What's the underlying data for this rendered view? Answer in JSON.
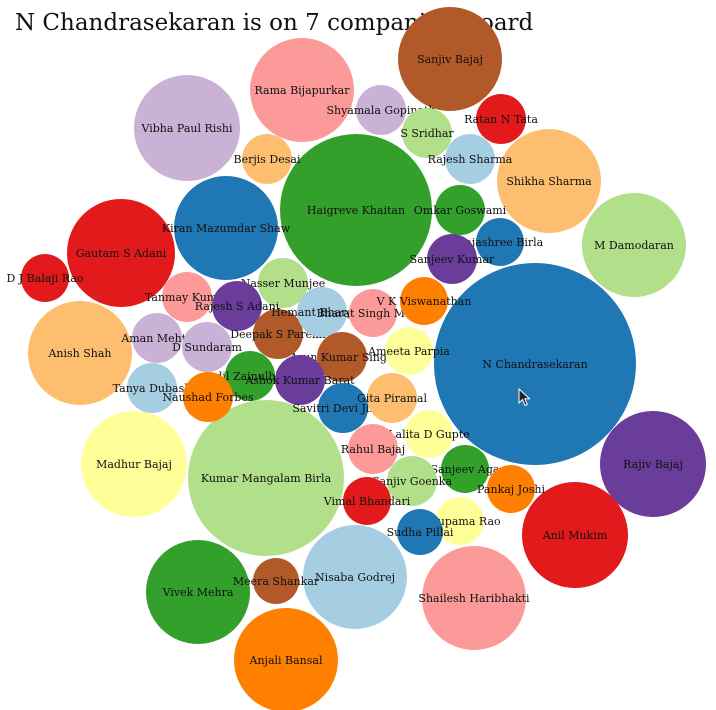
{
  "chart_data": {
    "type": "bubble",
    "title": "N Chandrasekaran is on 7 companies' board",
    "palette": [
      "#1f78b4",
      "#33a02c",
      "#e31a1c",
      "#ff7f00",
      "#6a3d9a",
      "#b15928",
      "#a6cee3",
      "#b2df8a",
      "#fb9a99",
      "#fdbf6f",
      "#cab2d6",
      "#ffff99"
    ],
    "nodes": [
      {
        "name": "N Chandrasekaran",
        "value": 7,
        "color": "#1f78b4"
      },
      {
        "name": "Kumar Mangalam Birla",
        "value": 4.1,
        "color": "#b2df8a"
      },
      {
        "name": "Haigreve Khaitan",
        "value": 3.9,
        "color": "#33a02c"
      },
      {
        "name": "Rama Bijapurkar",
        "value": 1.5,
        "color": "#fb9a99"
      },
      {
        "name": "Vibha Paul Rishi",
        "value": 1.5,
        "color": "#cab2d6"
      },
      {
        "name": "Gautam S Adani",
        "value": 1.55,
        "color": "#e31a1c"
      },
      {
        "name": "Kiran Mazumdar Shaw",
        "value": 1.45,
        "color": "#1f78b4"
      },
      {
        "name": "Shikha Sharma",
        "value": 1.45,
        "color": "#fdbf6f"
      },
      {
        "name": "M Damodaran",
        "value": 1.4,
        "color": "#b2df8a"
      },
      {
        "name": "Rajiv Bajaj",
        "value": 1.45,
        "color": "#6a3d9a"
      },
      {
        "name": "Anil Mukim",
        "value": 1.45,
        "color": "#e31a1c"
      },
      {
        "name": "Madhur Bajaj",
        "value": 1.45,
        "color": "#ffff99"
      },
      {
        "name": "Vivek Mehra",
        "value": 1.4,
        "color": "#33a02c"
      },
      {
        "name": "Anjali Bansal",
        "value": 1.45,
        "color": "#ff7f00"
      },
      {
        "name": "Nisaba Godrej",
        "value": 1.45,
        "color": "#a6cee3"
      },
      {
        "name": "Shailesh Haribhakti",
        "value": 1.07,
        "color": "#fb9a99"
      },
      {
        "name": "Anish Shah",
        "value": 1.41,
        "color": "#fdbf6f"
      },
      {
        "name": "Sanjiv Bajaj",
        "value": 1.38,
        "color": "#b15928"
      },
      {
        "name": "Ratan N Tata",
        "value": 0.3,
        "color": "#e31a1c"
      },
      {
        "name": "Shyamala Gopinath",
        "value": 0.3,
        "color": "#cab2d6"
      },
      {
        "name": "S Sridhar",
        "value": 0.29,
        "color": "#b2df8a"
      },
      {
        "name": "Rajesh Sharma",
        "value": 0.29,
        "color": "#a6cee3"
      },
      {
        "name": "Berjis Desai",
        "value": 0.29,
        "color": "#fdbf6f"
      },
      {
        "name": "Omkar Goswami",
        "value": 0.29,
        "color": "#33a02c"
      },
      {
        "name": "Rajashree Birla",
        "value": 0.28,
        "color": "#1f78b4"
      },
      {
        "name": "Sanjeev Kumar",
        "value": 0.29,
        "color": "#6a3d9a"
      },
      {
        "name": "Nasser Munjee",
        "value": 0.29,
        "color": "#b2df8a"
      },
      {
        "name": "Tanmay Kumar",
        "value": 0.29,
        "color": "#fb9a99"
      },
      {
        "name": "Rajesh S Adani",
        "value": 0.29,
        "color": "#6a3d9a"
      },
      {
        "name": "D J Balaji Rao",
        "value": 0.27,
        "color": "#e31a1c"
      },
      {
        "name": "Aman Mehta",
        "value": 0.29,
        "color": "#cab2d6"
      },
      {
        "name": "D Sundaram",
        "value": 0.29,
        "color": "#cab2d6"
      },
      {
        "name": "Deepak S Parekh",
        "value": 0.29,
        "color": "#b15928"
      },
      {
        "name": "Hemant Bhargava",
        "value": 0.29,
        "color": "#a6cee3"
      },
      {
        "name": "Bharat Singh Mehta",
        "value": 0.27,
        "color": "#fb9a99"
      },
      {
        "name": "V K Viswanathan",
        "value": 0.28,
        "color": "#ff7f00"
      },
      {
        "name": "Arun Kumar Singh",
        "value": 0.29,
        "color": "#b15928"
      },
      {
        "name": "Ameeta Parpia",
        "value": 0.27,
        "color": "#ffff99"
      },
      {
        "name": "Tanya Dubash",
        "value": 0.29,
        "color": "#a6cee3"
      },
      {
        "name": "Adil Zainulbhai",
        "value": 0.29,
        "color": "#33a02c"
      },
      {
        "name": "Ashok Kumar Barat",
        "value": 0.29,
        "color": "#6a3d9a"
      },
      {
        "name": "Naushad Forbes",
        "value": 0.29,
        "color": "#ff7f00"
      },
      {
        "name": "Savitri Devi Jindal",
        "value": 0.29,
        "color": "#1f78b4"
      },
      {
        "name": "Gita Piramal",
        "value": 0.29,
        "color": "#fdbf6f"
      },
      {
        "name": "Lalita D Gupte",
        "value": 0.27,
        "color": "#ffff99"
      },
      {
        "name": "Rahul Bajaj",
        "value": 0.28,
        "color": "#fb9a99"
      },
      {
        "name": "Sanjeev Aga",
        "value": 0.28,
        "color": "#33a02c"
      },
      {
        "name": "Sanjiv Goenka",
        "value": 0.29,
        "color": "#b2df8a"
      },
      {
        "name": "Pankaj Joshi",
        "value": 0.28,
        "color": "#ff7f00"
      },
      {
        "name": "Vimal Bhandari",
        "value": 0.27,
        "color": "#e31a1c"
      },
      {
        "name": "Nirupama Rao",
        "value": 0.27,
        "color": "#ffff99"
      },
      {
        "name": "Sudha Pillai",
        "value": 0.26,
        "color": "#1f78b4"
      },
      {
        "name": "Meera Shankar",
        "value": 0.26,
        "color": "#b15928"
      }
    ]
  }
}
